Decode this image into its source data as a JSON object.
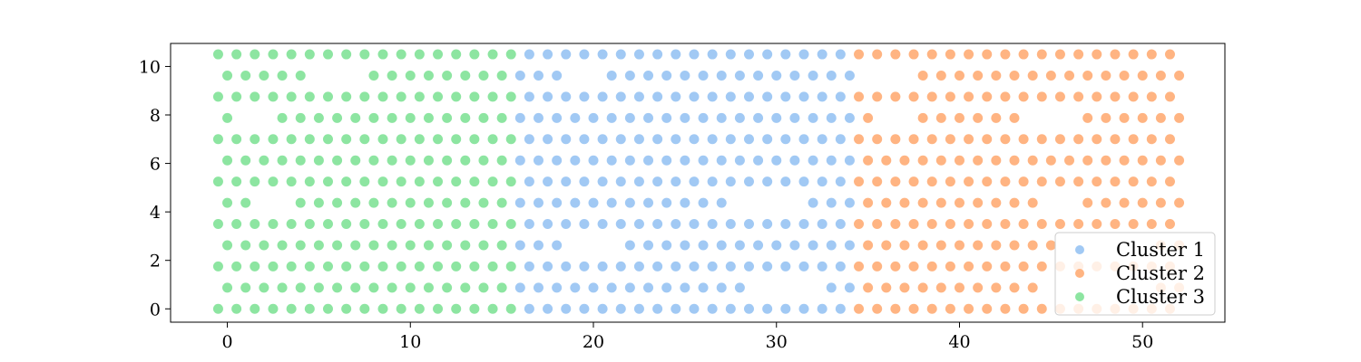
{
  "chart_data": {
    "type": "scatter",
    "xlim": [
      -3.1,
      54.5
    ],
    "ylim": [
      -0.55,
      10.95
    ],
    "x_ticks": [
      0,
      10,
      20,
      30,
      40,
      50
    ],
    "x_tick_labels": [
      "0",
      "10",
      "20",
      "30",
      "40",
      "50"
    ],
    "y_ticks": [
      0,
      2,
      4,
      6,
      8,
      10
    ],
    "y_tick_labels": [
      "0",
      "2",
      "4",
      "6",
      "8",
      "10"
    ],
    "grid": false,
    "legend_position": "lower-right",
    "grid_layout": {
      "y_values": [
        0,
        0.875,
        1.75,
        2.625,
        3.5,
        4.375,
        5.25,
        6.125,
        7.0,
        7.875,
        8.75,
        9.625,
        10.5
      ],
      "even_row_x_start": -0.5,
      "odd_row_x_start": 0.0,
      "x_step": 1.0,
      "even_row_count": 53,
      "odd_row_count": 53
    },
    "series": [
      {
        "name": "Cluster 1",
        "color": "#a1c9f4",
        "x_range": [
          16.0,
          34.0
        ],
        "gaps": [
          [
            0,
            [
              30,
              31,
              32
            ]
          ],
          [
            1,
            [
              29,
              30,
              31,
              32
            ]
          ],
          [
            2,
            [
              23,
              24,
              25,
              26,
              27,
              28,
              31,
              32
            ]
          ],
          [
            3,
            [
              19,
              20,
              21
            ]
          ],
          [
            4,
            [
              19,
              20
            ]
          ],
          [
            5,
            [
              28,
              29,
              30,
              31
            ]
          ],
          [
            6,
            [
              20,
              21,
              22,
              23,
              24,
              29,
              30,
              31
            ]
          ],
          [
            10,
            [
              21,
              22,
              23,
              24,
              25
            ]
          ],
          [
            11,
            [
              19,
              20
            ]
          ],
          [
            12,
            [
              28,
              29
            ]
          ]
        ]
      },
      {
        "name": "Cluster 2",
        "color": "#ffb482",
        "x_range": [
          34.5,
          52.0
        ],
        "gaps": [
          [
            1,
            [
              45,
              46,
              47,
              48,
              49,
              50
            ]
          ],
          [
            2,
            [
              37,
              38,
              45,
              46
            ]
          ],
          [
            3,
            [
              46,
              47,
              48,
              49,
              50
            ]
          ],
          [
            4,
            [
              38,
              39
            ]
          ],
          [
            5,
            [
              45,
              46
            ]
          ],
          [
            6,
            [
              36,
              37
            ]
          ],
          [
            9,
            [
              36,
              37,
              44,
              45,
              46
            ]
          ],
          [
            10,
            [
              35,
              36,
              37,
              40,
              41,
              46,
              47
            ]
          ],
          [
            11,
            [
              35,
              36,
              37
            ]
          ]
        ]
      },
      {
        "name": "Cluster 3",
        "color": "#8de5a1",
        "x_range": [
          -0.5,
          15.5
        ],
        "gaps": [
          [
            2,
            [
              8,
              9,
              10
            ]
          ],
          [
            5,
            [
              2,
              3
            ]
          ],
          [
            6,
            [
              1
            ]
          ],
          [
            9,
            [
              1,
              2
            ]
          ],
          [
            10,
            [
              1,
              2,
              8,
              9,
              12,
              13,
              14
            ]
          ],
          [
            11,
            [
              5,
              6,
              7
            ]
          ]
        ]
      }
    ]
  }
}
